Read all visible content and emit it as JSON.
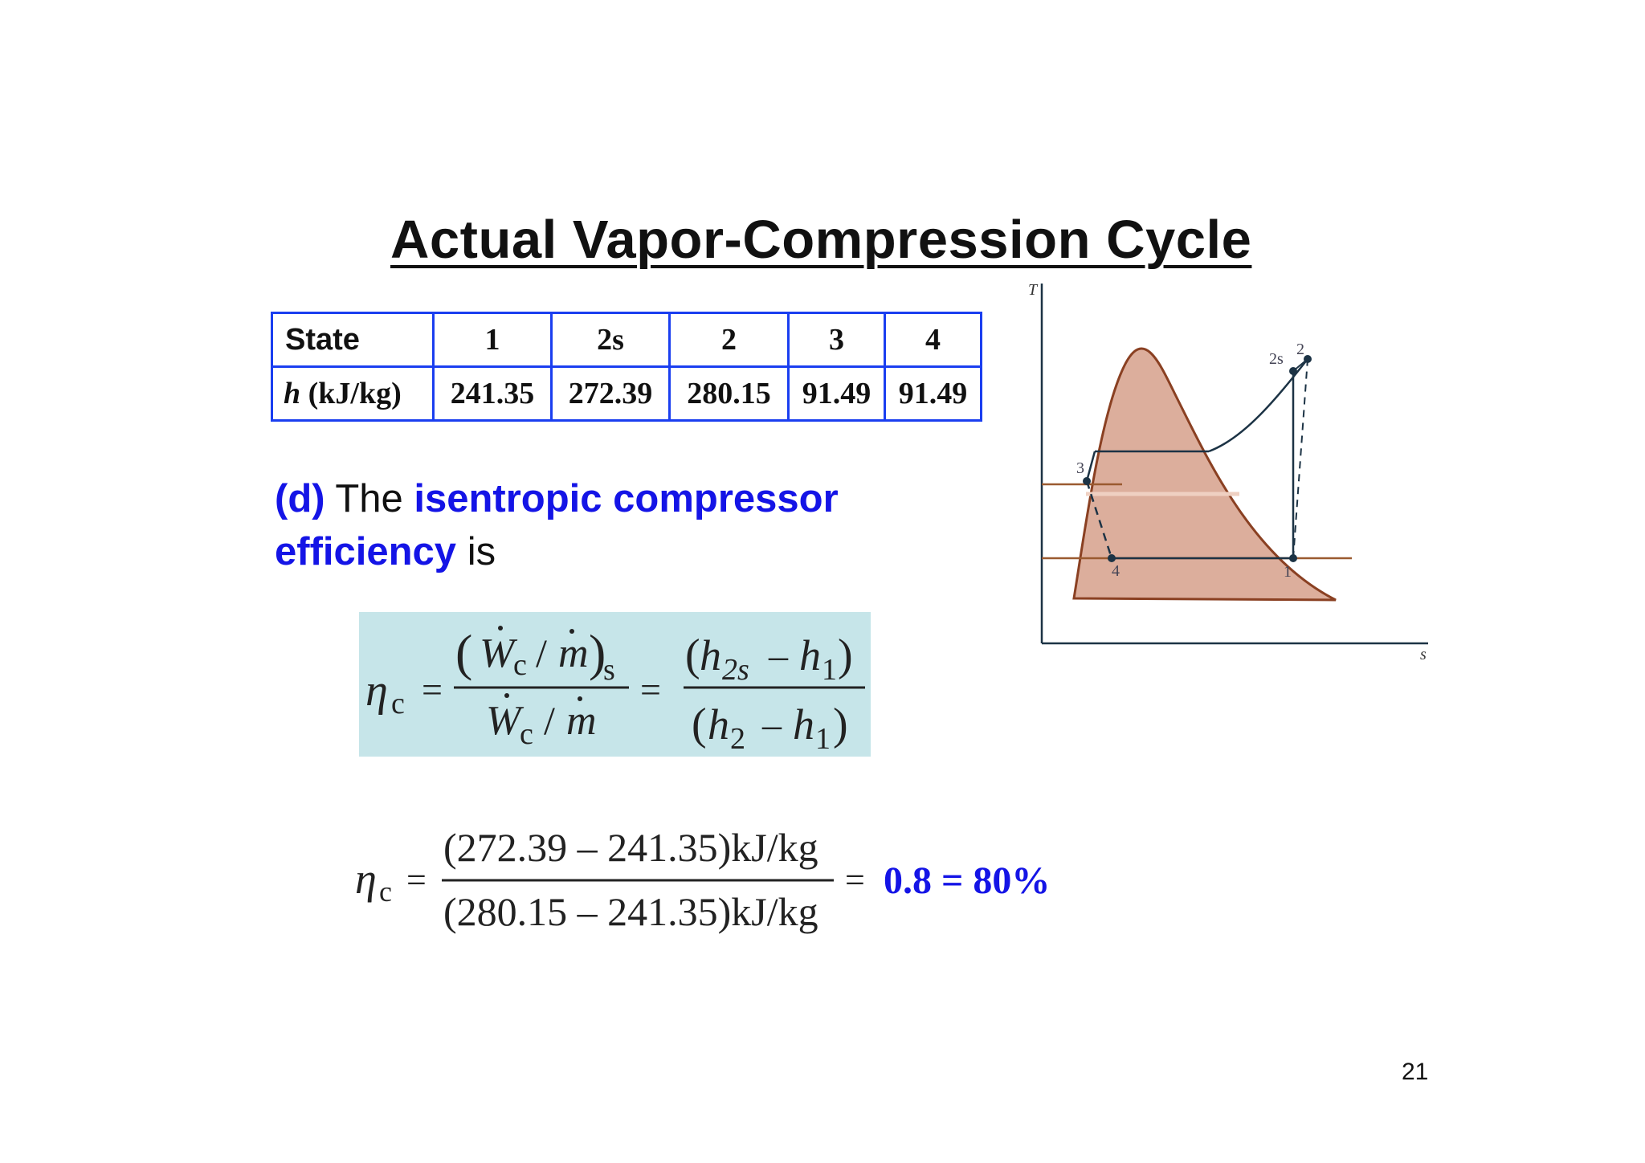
{
  "slide": {
    "title": "Actual Vapor-Compression Cycle",
    "page_number": "21"
  },
  "table": {
    "header_label": "State",
    "row_label_symbol": "h",
    "row_label_unit": "(kJ/kg)",
    "states": [
      "1",
      "2s",
      "2",
      "3",
      "4"
    ],
    "values": [
      "241.35",
      "272.39",
      "280.15",
      "91.49",
      "91.49"
    ]
  },
  "statement": {
    "part": "(d)",
    "text1": "The",
    "highlight1": "isentropic compressor",
    "highlight2": "efficiency",
    "text2": "is"
  },
  "formula": {
    "eta_symbol": "η",
    "eta_subscript": "c",
    "equals": "=",
    "work_symbol": "W",
    "work_subscript": "c",
    "slash": "/",
    "mass_symbol": "m",
    "isentropic_subscript": "s",
    "h_symbol": "h",
    "sub_2s": "2s",
    "sub_2": "2",
    "sub_1": "1",
    "minus": "–",
    "paren_open": "(",
    "paren_close": ")"
  },
  "calculation": {
    "numerator": "(272.39 – 241.35)kJ/kg",
    "denominator": "(280.15 – 241.35)kJ/kg",
    "result": "0.8 = 80%"
  },
  "diagram": {
    "t_axis_label": "T",
    "s_axis_label": "s",
    "points": [
      "1",
      "2s",
      "2",
      "3",
      "4"
    ],
    "colors": {
      "dome_fill": "#dcae9c",
      "dome_edge": "#8a4022",
      "cycle_line": "#1c3345",
      "isobar": "#9a5a30"
    }
  }
}
